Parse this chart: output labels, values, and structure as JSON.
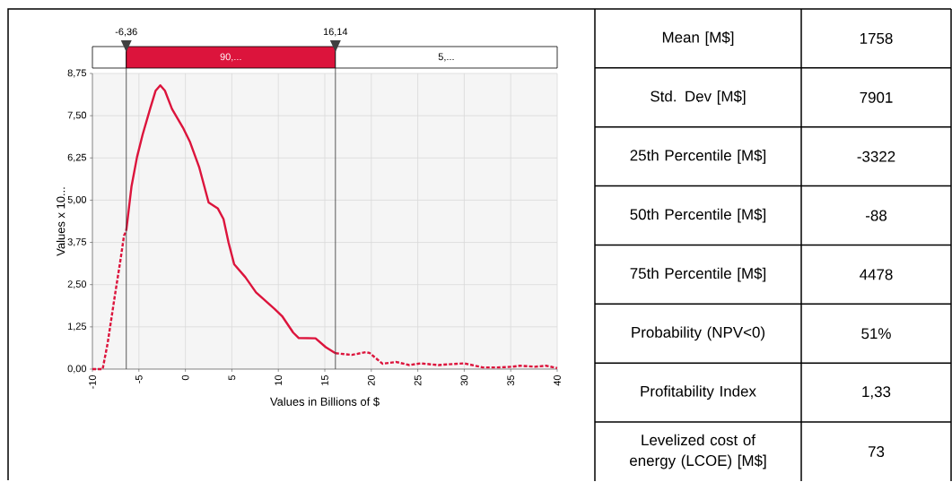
{
  "chart_data": [
    {
      "type": "line",
      "xlabel": "Values in Billions of $",
      "ylabel": "Values x 10...",
      "xlim": [
        -10,
        40
      ],
      "ylim": [
        0,
        8.75
      ],
      "xticks": [
        -10,
        -5,
        0,
        5,
        10,
        15,
        20,
        25,
        30,
        35,
        40
      ],
      "yticks": [
        {
          "value": 0,
          "label": "0,00"
        },
        {
          "value": 1.25,
          "label": "1,25"
        },
        {
          "value": 2.5,
          "label": "2,50"
        },
        {
          "value": 3.75,
          "label": "3,75"
        },
        {
          "value": 5,
          "label": "5,00"
        },
        {
          "value": 6.25,
          "label": "6,25"
        },
        {
          "value": 7.5,
          "label": "7,50"
        },
        {
          "value": 8.75,
          "label": "8,75"
        }
      ],
      "grid": true,
      "series": [
        {
          "color": "#dc143c",
          "line_style": "dashed",
          "x": [
            -10,
            -9,
            -8.9,
            -8.36,
            -7.6,
            -7.0,
            -6.6,
            -6.36
          ],
          "values": [
            0,
            0,
            0,
            0.77,
            2.15,
            3.2,
            3.95,
            4.1
          ]
        },
        {
          "color": "#dc143c",
          "line_style": "solid",
          "x": [
            -6.36,
            -5.8,
            -5.2,
            -4.6,
            -3.8,
            -3.2,
            -2.7,
            -2.2,
            -1.44,
            -0.27,
            0.5,
            1.5,
            2.5,
            3.5,
            4.1,
            4.65,
            5.25,
            6.45,
            7.6,
            9.6,
            10.4,
            11.6,
            12.2,
            14.0,
            15.1,
            16.14
          ],
          "values": [
            4.1,
            5.4,
            6.28,
            6.94,
            7.7,
            8.24,
            8.4,
            8.24,
            7.7,
            7.15,
            6.72,
            5.96,
            4.93,
            4.75,
            4.44,
            3.74,
            3.1,
            2.72,
            2.27,
            1.78,
            1.57,
            1.08,
            0.92,
            0.91,
            0.65,
            0.47
          ]
        },
        {
          "color": "#dc143c",
          "line_style": "dashed",
          "x": [
            16.14,
            17.9,
            19.4,
            19.8,
            21.2,
            22.7,
            24.1,
            25.3,
            27.2,
            28.8,
            30,
            32,
            33.6,
            35.2,
            36,
            37.6,
            38.8,
            40
          ],
          "values": [
            0.47,
            0.42,
            0.5,
            0.48,
            0.16,
            0.21,
            0.12,
            0.17,
            0.12,
            0.15,
            0.17,
            0.05,
            0.05,
            0.07,
            0.1,
            0.07,
            0.1,
            0.03
          ]
        }
      ],
      "ref_lines": [
        {
          "axis": "x",
          "value": -6.36,
          "label": "-6,36"
        },
        {
          "axis": "x",
          "value": 16.14,
          "label": "16,14"
        }
      ],
      "annotations": [
        "90,...",
        "5,..."
      ]
    },
    {
      "type": "other",
      "annotations": [
        "Mean [M$]",
        "1758",
        "Std. Dev [M$]",
        "7901",
        "25th Percentile [M$]",
        "-3322",
        "50th Percentile [M$]",
        "-88",
        "75th Percentile [M$]",
        "4478",
        "Probability (NPV<0)",
        "51%",
        "Profitability Index",
        "1,33",
        "Levelized cost of energy (LCOE) [M$]",
        "73"
      ]
    }
  ]
}
